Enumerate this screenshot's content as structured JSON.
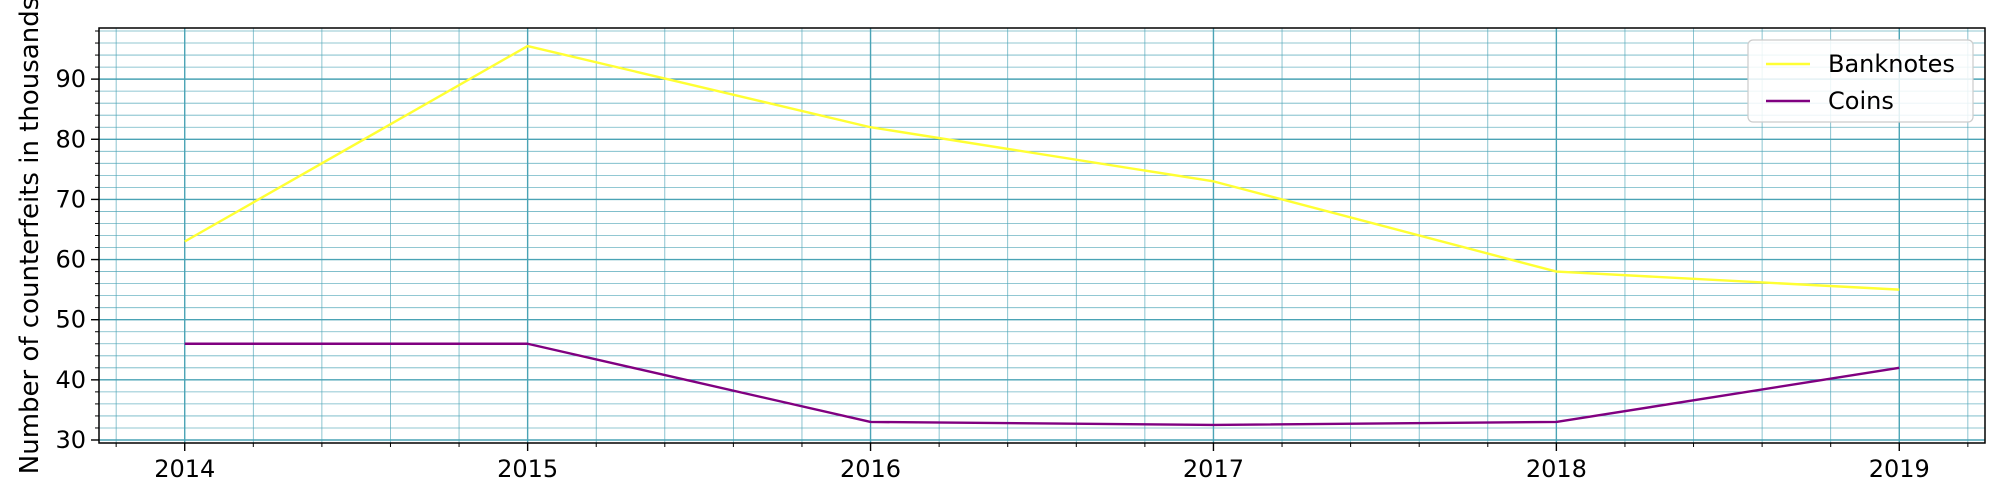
{
  "chart_data": {
    "type": "line",
    "title": "",
    "xlabel": "",
    "ylabel": "Number of counterfeits in thousands",
    "x": [
      "2014",
      "2015",
      "2016",
      "2017",
      "2018",
      "2019"
    ],
    "x_numeric": [
      2014,
      2015,
      2016,
      2017,
      2018,
      2019
    ],
    "xlim": [
      2013.75,
      2019.25
    ],
    "ylim": [
      29.5,
      98.5
    ],
    "yticks": [
      30,
      40,
      50,
      60,
      70,
      80,
      90
    ],
    "series": [
      {
        "name": "Banknotes",
        "color": "#ffff33",
        "values": [
          63,
          95.5,
          82,
          73,
          58,
          55
        ]
      },
      {
        "name": "Coins",
        "color": "#800080",
        "values": [
          46,
          46,
          33,
          32.5,
          33,
          42
        ]
      }
    ],
    "grid": true,
    "grid_minor": true,
    "grid_color": "#4aa3b5",
    "legend": "top-right"
  }
}
